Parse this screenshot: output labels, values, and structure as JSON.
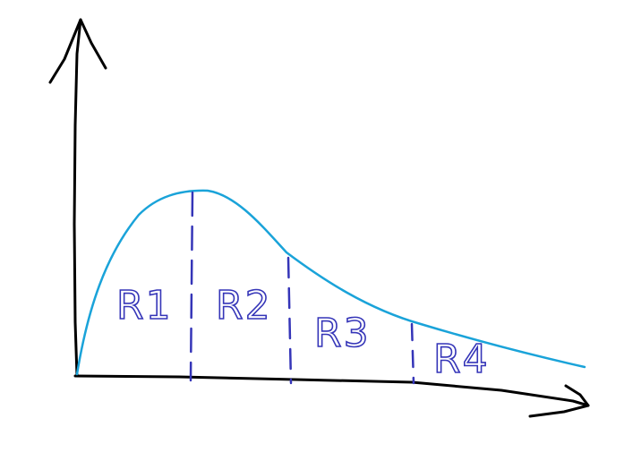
{
  "colors": {
    "background": "#ffffff",
    "axes": "#000000",
    "curve": "#1aa3d9",
    "dividers": "#3535b8",
    "labels": "#3535b8"
  },
  "icons": {
    "y_axis_head": "arrow-up-icon",
    "x_axis_head": "arrow-right-icon"
  },
  "regions": [
    {
      "id": "r1",
      "label": "R1"
    },
    {
      "id": "r2",
      "label": "R2"
    },
    {
      "id": "r3",
      "label": "R3"
    },
    {
      "id": "r4",
      "label": "R4"
    }
  ]
}
